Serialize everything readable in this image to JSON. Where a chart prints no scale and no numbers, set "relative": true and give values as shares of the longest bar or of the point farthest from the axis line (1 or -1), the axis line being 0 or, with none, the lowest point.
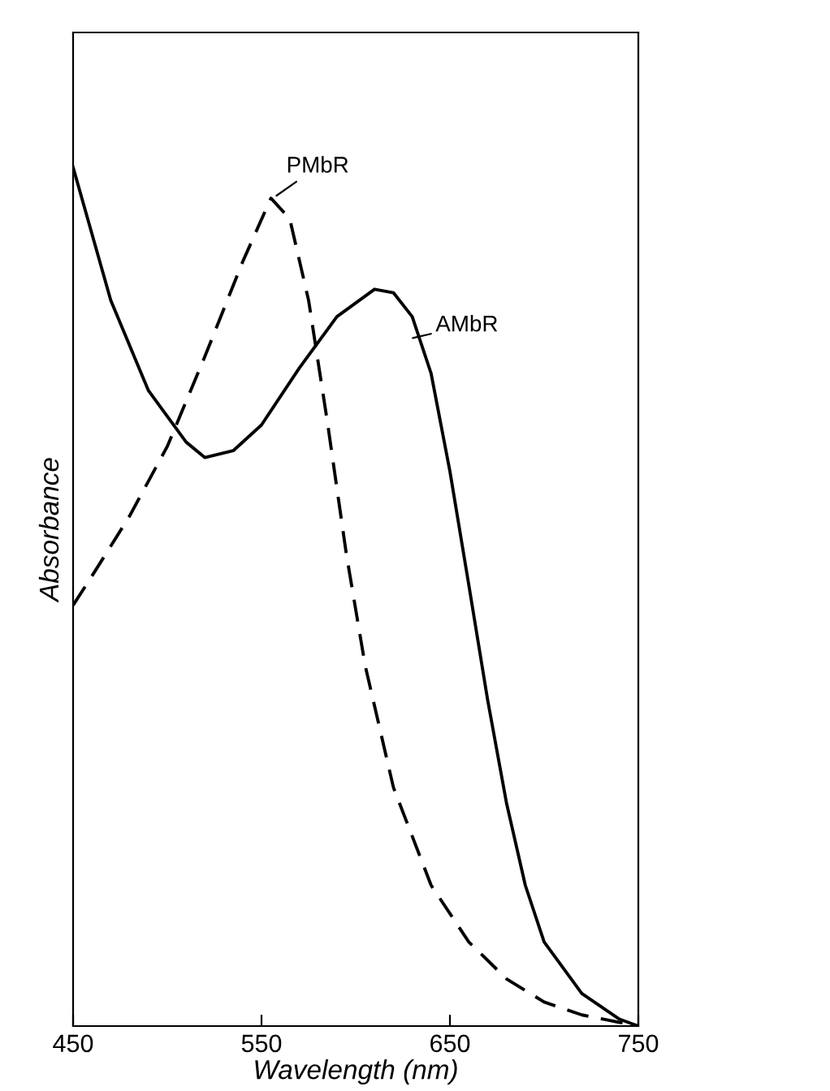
{
  "chart_data": {
    "type": "line",
    "relative": true,
    "xlabel": "Wavelength (nm)",
    "ylabel": "Absorbance",
    "xlim": [
      450,
      750
    ],
    "xticks": [
      450,
      550,
      650,
      750
    ],
    "tick_labels": "x",
    "grid": false,
    "marker": "none",
    "series": [
      {
        "name": "AMbR",
        "color": "#000000",
        "line_style": "solid",
        "x": [
          450,
          470,
          490,
          510,
          520,
          535,
          550,
          570,
          590,
          610,
          620,
          630,
          640,
          650,
          660,
          670,
          680,
          690,
          700,
          720,
          740,
          750
        ],
        "values": [
          1.0,
          0.845,
          0.74,
          0.68,
          0.662,
          0.67,
          0.7,
          0.766,
          0.826,
          0.858,
          0.854,
          0.826,
          0.76,
          0.646,
          0.514,
          0.38,
          0.26,
          0.164,
          0.098,
          0.038,
          0.008,
          0.0
        ]
      },
      {
        "name": "PMbR",
        "color": "#000000",
        "line_style": "dashed",
        "x": [
          450,
          460,
          480,
          500,
          520,
          540,
          555,
          565,
          575,
          585,
          595,
          605,
          620,
          640,
          660,
          680,
          700,
          720,
          750
        ],
        "values": [
          0.49,
          0.524,
          0.594,
          0.675,
          0.78,
          0.89,
          0.964,
          0.94,
          0.845,
          0.703,
          0.55,
          0.42,
          0.278,
          0.164,
          0.098,
          0.055,
          0.028,
          0.013,
          0.0
        ]
      }
    ]
  }
}
